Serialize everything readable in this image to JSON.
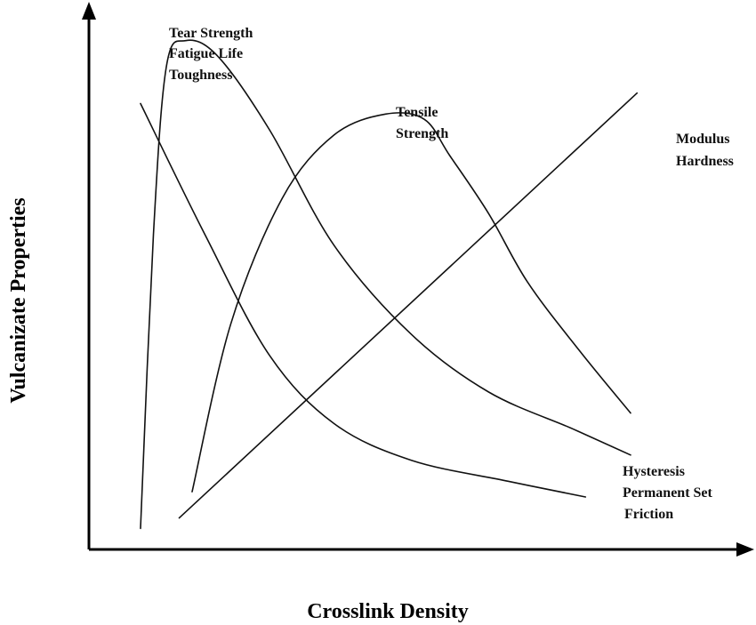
{
  "chart_data": {
    "type": "line",
    "xlabel": "Crosslink Density",
    "ylabel": "Vulcanizate Properties",
    "xlim": [
      0,
      100
    ],
    "ylim": [
      0,
      100
    ],
    "grid": false,
    "legend": "none",
    "series": [
      {
        "name": "Tear Strength / Fatigue Life / Toughness",
        "labels": [
          "Tear Strength",
          "Fatigue Life",
          "Toughness"
        ],
        "x": [
          8,
          10,
          12,
          15,
          20,
          28,
          38,
          50,
          62,
          75,
          84
        ],
        "y": [
          4,
          60,
          92,
          97,
          94,
          80,
          58,
          41,
          30,
          23,
          18
        ]
      },
      {
        "name": "Tensile Strength",
        "labels": [
          "Tensile",
          "Strength"
        ],
        "x": [
          16,
          22,
          30,
          38,
          46,
          52,
          56,
          62,
          68,
          76,
          84
        ],
        "y": [
          11,
          43,
          67,
          79,
          83,
          82,
          75,
          64,
          51,
          38,
          26
        ]
      },
      {
        "name": "Modulus / Hardness",
        "labels": [
          "Modulus",
          "Hardness"
        ],
        "x": [
          14,
          85
        ],
        "y": [
          6,
          87
        ]
      },
      {
        "name": "Hysteresis / Permanent Set / Friction",
        "labels": [
          "Hysteresis",
          "Permanent Set",
          "Friction"
        ],
        "x": [
          8,
          18,
          28,
          38,
          50,
          65,
          77
        ],
        "y": [
          85,
          60,
          37,
          24,
          17,
          13,
          10
        ]
      }
    ]
  }
}
